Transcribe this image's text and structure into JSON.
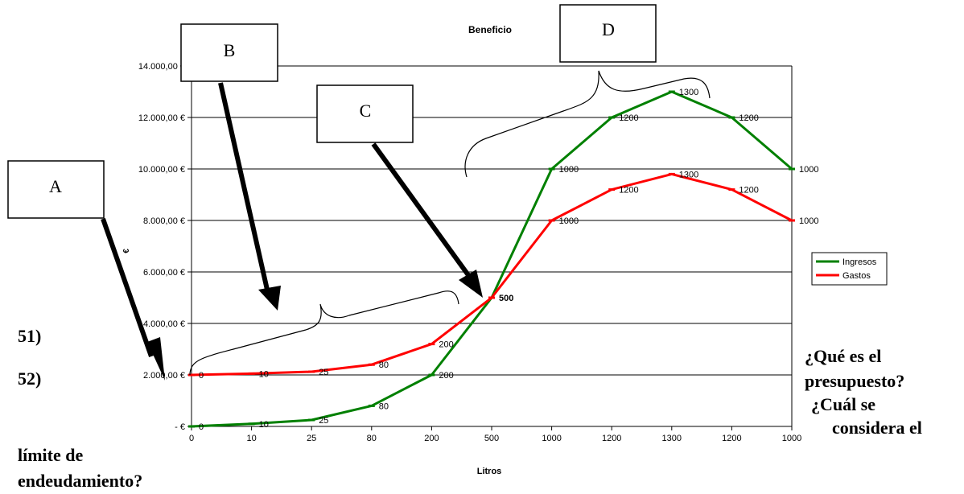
{
  "chart_data": {
    "type": "line",
    "title": "Beneficio",
    "xlabel": "Litros",
    "ylabel": "€",
    "categories": [
      "0",
      "10",
      "25",
      "80",
      "200",
      "500",
      "1000",
      "1200",
      "1300",
      "1200",
      "1000"
    ],
    "ylim": [
      0,
      14000
    ],
    "ytick_labels": [
      "-   €",
      "2.000,00 €",
      "4.000,00 €",
      "6.000,00 €",
      "8.000,00 €",
      "10.000,00 €",
      "12.000,00 €",
      "14.000,00 €"
    ],
    "grid": "horizontal",
    "legend_position": "right",
    "series": [
      {
        "name": "Ingresos",
        "color": "#008000",
        "values": [
          0,
          100,
          250,
          800,
          2000,
          5000,
          10000,
          12000,
          13000,
          12000,
          10000
        ],
        "labels": [
          "0",
          "10",
          "25",
          "80",
          "200",
          "",
          "1000",
          "1200",
          "1300",
          "1200",
          "1000"
        ]
      },
      {
        "name": "Gastos",
        "color": "#ff0000",
        "values": [
          2000,
          2050,
          2125,
          2400,
          3200,
          5000,
          8000,
          9200,
          9800,
          9200,
          8000
        ],
        "labels": [
          "0",
          "10",
          "25",
          "80",
          "200",
          "500",
          "1000",
          "1200",
          "1300",
          "1200",
          "1000"
        ]
      }
    ]
  },
  "annotations": {
    "box_a": "A",
    "box_b": "B",
    "box_c": "C",
    "box_d": "D"
  },
  "questions": {
    "q51_number": "51)",
    "q52_number": "52)",
    "q51_line1": "¿Qué es el",
    "q51_line2": "presupuesto?",
    "q52_line1": "¿Cuál se",
    "q52_line2": "considera el",
    "q52_line3": "límite de",
    "q52_line4": "endeudamiento?"
  }
}
